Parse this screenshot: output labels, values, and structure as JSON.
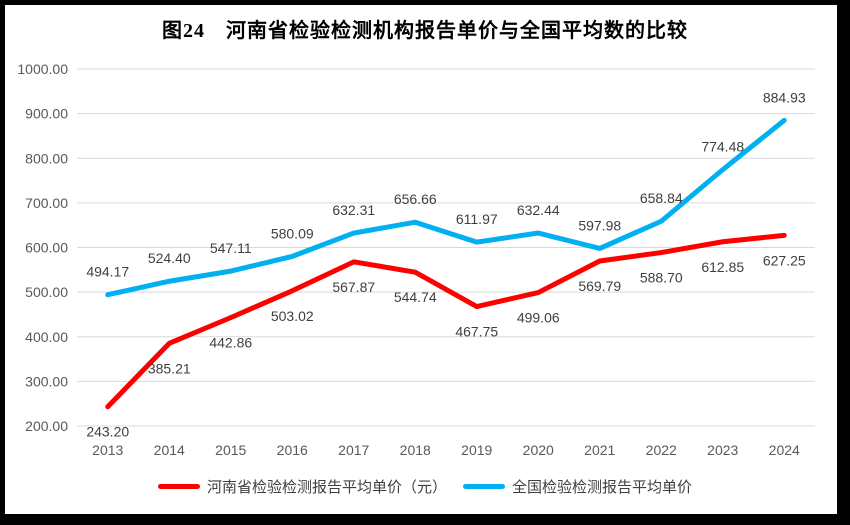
{
  "frame": {
    "background": "#FFFFFF",
    "border_color": "#000000"
  },
  "chart_data": {
    "type": "line",
    "title": "图24　河南省检验检测机构报告单价与全国平均数的比较",
    "categories": [
      "2013",
      "2014",
      "2015",
      "2016",
      "2017",
      "2018",
      "2019",
      "2020",
      "2021",
      "2022",
      "2023",
      "2024"
    ],
    "series": [
      {
        "name": "河南省检验检测报告平均单价（元）",
        "color": "#FF0000",
        "label_position": "below",
        "values": [
          243.2,
          385.21,
          442.86,
          503.02,
          567.87,
          544.74,
          467.75,
          499.06,
          569.79,
          588.7,
          612.85,
          627.25
        ],
        "labels": [
          "243.20",
          "385.21",
          "442.86",
          "503.02",
          "567.87",
          "544.74",
          "467.75",
          "499.06",
          "569.79",
          "588.70",
          "612.85",
          "627.25"
        ]
      },
      {
        "name": "全国检验检测报告平均单价",
        "color": "#00B0F0",
        "label_position": "above",
        "values": [
          494.17,
          524.4,
          547.11,
          580.09,
          632.31,
          656.66,
          611.97,
          632.44,
          597.98,
          658.84,
          774.48,
          884.93
        ],
        "labels": [
          "494.17",
          "524.40",
          "547.11",
          "580.09",
          "632.31",
          "656.66",
          "611.97",
          "632.44",
          "597.98",
          "658.84",
          "774.48",
          "884.93"
        ]
      }
    ],
    "y_axis": {
      "min": 200,
      "max": 1000,
      "step": 100,
      "ticks": [
        "1000.00",
        "900.00",
        "800.00",
        "700.00",
        "600.00",
        "500.00",
        "400.00",
        "300.00",
        "200.00"
      ]
    },
    "grid": true,
    "gridline_color": "#D9D9D9",
    "legend_position": "bottom",
    "text_colors": {
      "axis": "#595959",
      "data_label": "#404040",
      "title": "#000000"
    }
  }
}
